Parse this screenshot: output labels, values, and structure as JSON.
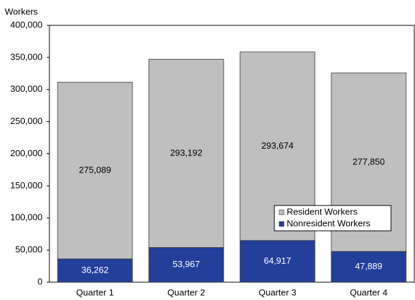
{
  "chart_data": {
    "type": "stacked_bar",
    "y_axis_label": "Workers",
    "categories": [
      "Quarter 1",
      "Quarter 2",
      "Quarter 3",
      "Quarter 4"
    ],
    "series": [
      {
        "name": "Nonresident Workers",
        "color": "#243f9a",
        "values": [
          36262,
          53967,
          64917,
          47889
        ],
        "value_labels": [
          "36,262",
          "53,967",
          "64,917",
          "47,889"
        ]
      },
      {
        "name": "Resident Workers",
        "color": "#bfbfbf",
        "values": [
          275089,
          293192,
          293674,
          277850
        ],
        "value_labels": [
          "275,089",
          "293,192",
          "293,674",
          "277,850"
        ]
      }
    ],
    "ylim": [
      0,
      400000
    ],
    "yticks": [
      0,
      {
        "value": 50000,
        "label": "50,000"
      },
      {
        "value": 100000,
        "label": "100,000"
      },
      {
        "value": 150000,
        "label": "150,000"
      },
      {
        "value": 200000,
        "label": "200,000"
      },
      {
        "value": 250000,
        "label": "250,000"
      },
      {
        "value": 300000,
        "label": "300,000"
      },
      {
        "value": 350000,
        "label": "350,000"
      },
      {
        "value": 400000,
        "label": "400,000"
      }
    ],
    "grid": false
  }
}
